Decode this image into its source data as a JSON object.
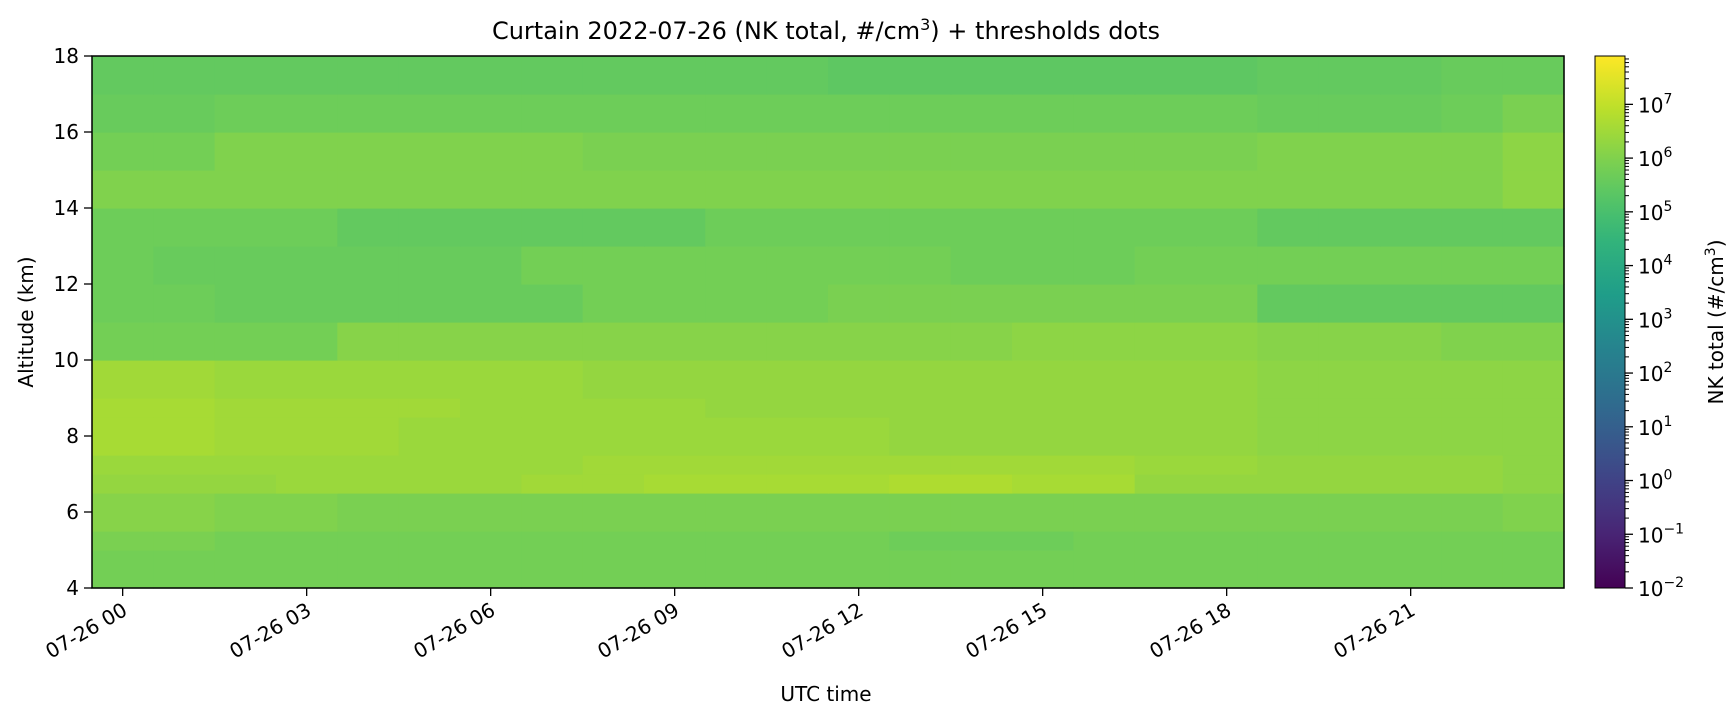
{
  "chart_data": {
    "type": "heatmap",
    "title_main": "Curtain 2022-07-26 (NK total, #/cm",
    "title_sup": "3",
    "title_tail": ") + thresholds dots",
    "xlabel": "UTC time",
    "ylabel": "Altitude (km)",
    "x_ticks": [
      "07-26 00",
      "07-26 03",
      "07-26 06",
      "07-26 09",
      "07-26 12",
      "07-26 15",
      "07-26 18",
      "07-26 21"
    ],
    "x_tick_hours": [
      0,
      3,
      6,
      9,
      12,
      15,
      18,
      21
    ],
    "xlim_hours": [
      -0.5,
      23.5
    ],
    "ylim": [
      4,
      18
    ],
    "y_ticks": [
      4,
      6,
      8,
      10,
      12,
      14,
      16,
      18
    ],
    "hours": [
      0,
      1,
      2,
      3,
      4,
      5,
      6,
      7,
      8,
      9,
      10,
      11,
      12,
      13,
      14,
      15,
      16,
      17,
      18,
      19,
      20,
      21,
      22,
      23
    ],
    "altitude_bins_km": [
      [
        4,
        5
      ],
      [
        5,
        5.5
      ],
      [
        5.5,
        6.5
      ],
      [
        6.5,
        7
      ],
      [
        7,
        7.5
      ],
      [
        7.5,
        8.5
      ],
      [
        8.5,
        9
      ],
      [
        9,
        10
      ],
      [
        10,
        11
      ],
      [
        11,
        12
      ],
      [
        12,
        13
      ],
      [
        13,
        14
      ],
      [
        14,
        15
      ],
      [
        15,
        16
      ],
      [
        16,
        17
      ],
      [
        17,
        18
      ]
    ],
    "log10_values": [
      [
        5.8,
        5.8,
        5.8,
        5.8,
        5.8,
        5.8,
        5.8,
        5.8,
        5.8,
        5.8,
        5.8,
        5.8,
        5.8,
        5.8,
        5.8,
        5.8,
        5.8,
        5.8,
        5.8,
        5.8,
        5.8,
        5.8,
        5.8,
        5.8
      ],
      [
        5.9,
        5.9,
        5.8,
        5.8,
        5.8,
        5.8,
        5.8,
        5.8,
        5.8,
        5.8,
        5.8,
        5.8,
        5.8,
        5.7,
        5.7,
        5.7,
        5.8,
        5.8,
        5.8,
        5.8,
        5.8,
        5.8,
        5.8,
        5.8
      ],
      [
        6.1,
        6.1,
        6.0,
        6.0,
        5.9,
        5.9,
        5.9,
        5.9,
        5.9,
        5.9,
        5.9,
        5.9,
        5.9,
        5.9,
        5.9,
        5.9,
        5.9,
        5.9,
        5.9,
        5.9,
        5.9,
        5.9,
        5.9,
        6.0
      ],
      [
        6.3,
        6.3,
        6.3,
        6.4,
        6.4,
        6.4,
        6.4,
        6.5,
        6.5,
        6.6,
        6.6,
        6.6,
        6.6,
        6.7,
        6.7,
        6.6,
        6.6,
        6.3,
        6.3,
        6.3,
        6.3,
        6.3,
        6.3,
        6.2
      ],
      [
        6.4,
        6.4,
        6.4,
        6.4,
        6.4,
        6.4,
        6.4,
        6.4,
        6.5,
        6.5,
        6.5,
        6.5,
        6.5,
        6.5,
        6.5,
        6.5,
        6.5,
        6.4,
        6.4,
        6.3,
        6.3,
        6.3,
        6.3,
        6.2
      ],
      [
        6.6,
        6.6,
        6.5,
        6.5,
        6.5,
        6.4,
        6.4,
        6.4,
        6.4,
        6.4,
        6.4,
        6.4,
        6.4,
        6.3,
        6.3,
        6.3,
        6.3,
        6.3,
        6.3,
        6.2,
        6.2,
        6.2,
        6.2,
        6.2
      ],
      [
        6.6,
        6.6,
        6.5,
        6.5,
        6.5,
        6.5,
        6.4,
        6.4,
        6.4,
        6.4,
        6.3,
        6.3,
        6.3,
        6.3,
        6.3,
        6.3,
        6.3,
        6.3,
        6.3,
        6.2,
        6.2,
        6.2,
        6.2,
        6.2
      ],
      [
        6.5,
        6.5,
        6.4,
        6.4,
        6.4,
        6.4,
        6.4,
        6.4,
        6.3,
        6.3,
        6.3,
        6.3,
        6.3,
        6.3,
        6.3,
        6.3,
        6.3,
        6.3,
        6.3,
        6.2,
        6.2,
        6.2,
        6.2,
        6.2
      ],
      [
        5.8,
        5.8,
        5.8,
        5.8,
        6.1,
        6.1,
        6.1,
        6.1,
        6.1,
        6.1,
        6.1,
        6.1,
        6.1,
        6.1,
        6.1,
        6.2,
        6.2,
        6.2,
        6.2,
        6.1,
        6.1,
        6.1,
        6.0,
        6.0
      ],
      [
        5.7,
        5.7,
        5.6,
        5.6,
        5.6,
        5.6,
        5.6,
        5.6,
        5.8,
        5.8,
        5.8,
        5.8,
        5.9,
        5.9,
        5.9,
        5.9,
        5.9,
        5.9,
        5.9,
        5.5,
        5.5,
        5.5,
        5.5,
        5.5
      ],
      [
        5.7,
        5.6,
        5.6,
        5.6,
        5.6,
        5.6,
        5.6,
        5.8,
        5.8,
        5.8,
        5.8,
        5.8,
        5.8,
        5.8,
        5.7,
        5.7,
        5.7,
        5.8,
        5.8,
        5.8,
        5.8,
        5.8,
        5.8,
        5.8
      ],
      [
        5.7,
        5.7,
        5.7,
        5.7,
        5.5,
        5.5,
        5.5,
        5.5,
        5.5,
        5.5,
        5.7,
        5.7,
        5.7,
        5.7,
        5.7,
        5.7,
        5.7,
        5.7,
        5.7,
        5.5,
        5.5,
        5.5,
        5.5,
        5.5
      ],
      [
        6.0,
        6.0,
        6.0,
        6.0,
        6.0,
        6.0,
        6.0,
        6.0,
        6.0,
        6.0,
        6.0,
        6.0,
        6.0,
        6.0,
        6.0,
        6.0,
        6.0,
        6.0,
        6.0,
        6.0,
        6.0,
        6.0,
        6.0,
        6.2
      ],
      [
        5.8,
        5.8,
        6.0,
        6.0,
        6.0,
        6.0,
        6.0,
        6.0,
        5.9,
        5.9,
        5.9,
        5.9,
        5.9,
        5.9,
        5.9,
        5.9,
        5.9,
        5.9,
        5.9,
        6.0,
        6.0,
        6.0,
        6.0,
        6.2
      ],
      [
        5.6,
        5.6,
        5.7,
        5.7,
        5.7,
        5.7,
        5.7,
        5.7,
        5.7,
        5.7,
        5.7,
        5.7,
        5.7,
        5.7,
        5.7,
        5.7,
        5.7,
        5.7,
        5.7,
        5.6,
        5.6,
        5.6,
        5.7,
        5.9
      ],
      [
        5.5,
        5.5,
        5.5,
        5.5,
        5.5,
        5.5,
        5.5,
        5.5,
        5.5,
        5.5,
        5.5,
        5.5,
        5.4,
        5.4,
        5.4,
        5.4,
        5.4,
        5.4,
        5.4,
        5.5,
        5.5,
        5.5,
        5.6,
        5.6
      ]
    ],
    "colorbar": {
      "label_main": "NK total (#/cm",
      "label_sup": "3",
      "label_tail": ")",
      "scale": "log",
      "log10_range": [
        -2,
        7.9
      ],
      "tick_exponents": [
        -2,
        -1,
        0,
        1,
        2,
        3,
        4,
        5,
        6,
        7
      ],
      "tick_base": "10",
      "colormap": "viridis"
    }
  }
}
